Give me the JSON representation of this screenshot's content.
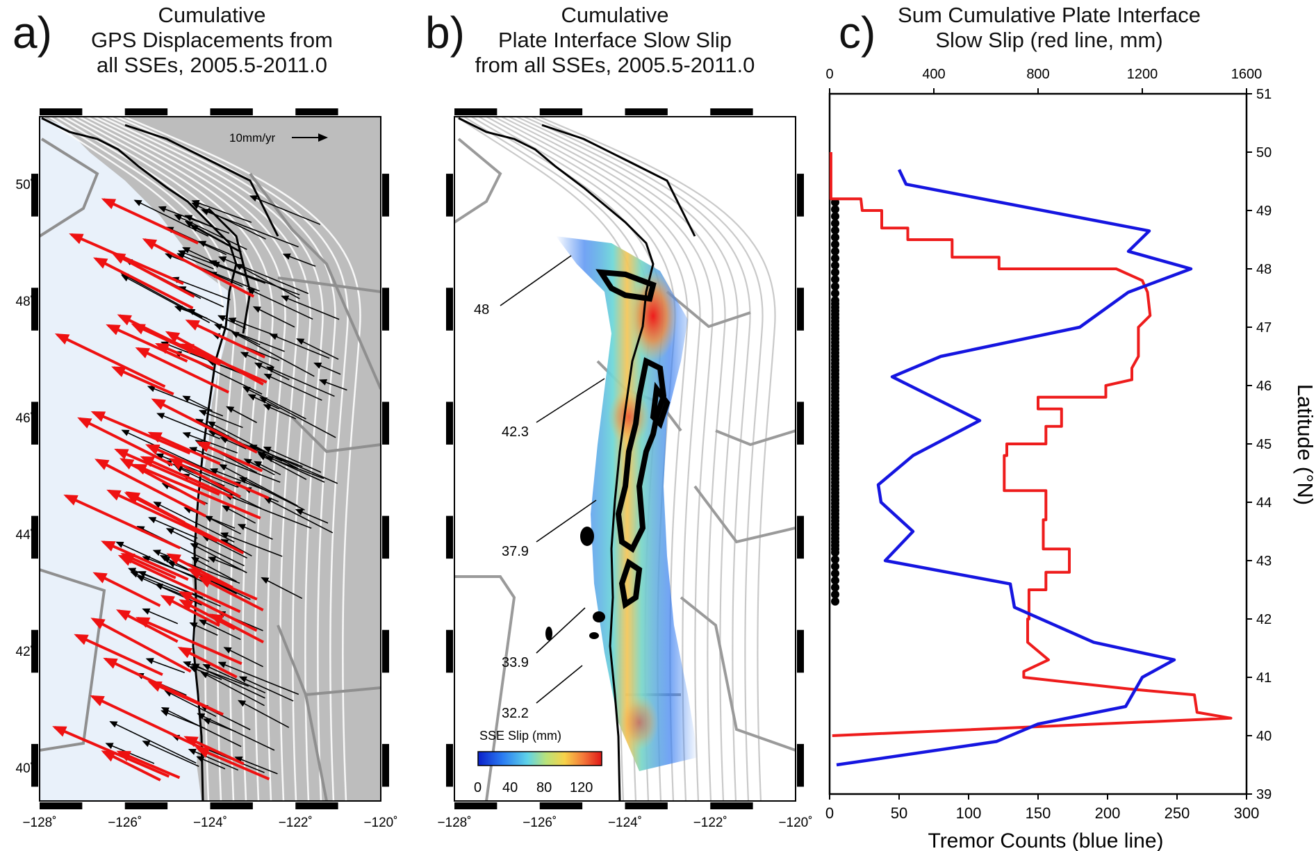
{
  "panels": {
    "a": {
      "label": "a)",
      "title": [
        "Cumulative",
        "GPS Displacements from",
        "all SSEs, 2005.5-2011.0"
      ],
      "arrow_scale_label": "10mm/yr"
    },
    "b": {
      "label": "b)",
      "title": [
        "Cumulative",
        "Plate Interface Slow Slip",
        "from all SSEs, 2005.5-2011.0"
      ],
      "colorbar_label": "SSE Slip (mm)",
      "colorbar_ticks": [
        "0",
        "40",
        "80",
        "120"
      ],
      "depth_labels": [
        "48",
        "42.3",
        "37.9",
        "33.9",
        "32.2"
      ]
    },
    "c": {
      "label": "c)",
      "title": [
        "Sum Cumulative Plate Interface",
        "Slow Slip (red line, mm)"
      ],
      "bottom_axis_label": "Tremor Counts (blue line)",
      "right_axis_label": "Latitude (°N)"
    }
  },
  "map_axes": {
    "lon_ticks": [
      "−128˚",
      "−126˚",
      "−124˚",
      "−122˚",
      "−120˚"
    ],
    "lat_ticks": [
      "40˚",
      "42˚",
      "44˚",
      "46˚",
      "48˚",
      "50˚"
    ]
  },
  "colors": {
    "slip": "#ee1c1c",
    "tremor": "#1515e0",
    "gps_black": "#000000",
    "gps_red": "#ee1111",
    "map_gray": "#bdbdbd",
    "ocean": "#e9f1fa"
  },
  "chart_data": [
    {
      "type": "line",
      "title": "Sum Cumulative Plate Interface Slow Slip (red line, mm)",
      "xlabel_top": "Sum Cumulative Plate Interface Slow Slip (red line, mm)",
      "xlabel_bottom": "Tremor Counts (blue line)",
      "ylabel": "Latitude (°N)",
      "ylim": [
        39,
        51
      ],
      "top_xlim": [
        0,
        1600
      ],
      "top_xticks": [
        "0",
        "400",
        "800",
        "1200",
        "1600"
      ],
      "bottom_xlim": [
        0,
        300
      ],
      "bottom_xticks": [
        "0",
        "50",
        "100",
        "150",
        "200",
        "250",
        "300"
      ],
      "yticks": [
        "39",
        "40",
        "41",
        "42",
        "43",
        "44",
        "45",
        "46",
        "47",
        "48",
        "49",
        "50",
        "51"
      ],
      "series": [
        {
          "name": "red line",
          "axis": "top",
          "color": "#ee1c1c",
          "points": [
            [
              5,
              50.0
            ],
            [
              5,
              49.2
            ],
            [
              120,
              49.2
            ],
            [
              125,
              49.0
            ],
            [
              200,
              49.0
            ],
            [
              200,
              48.7
            ],
            [
              300,
              48.7
            ],
            [
              300,
              48.5
            ],
            [
              470,
              48.5
            ],
            [
              470,
              48.2
            ],
            [
              650,
              48.2
            ],
            [
              650,
              48.0
            ],
            [
              1100,
              48.0
            ],
            [
              1200,
              47.8
            ],
            [
              1220,
              47.6
            ],
            [
              1230,
              47.2
            ],
            [
              1185,
              47.0
            ],
            [
              1185,
              46.5
            ],
            [
              1160,
              46.3
            ],
            [
              1160,
              46.1
            ],
            [
              1060,
              46.0
            ],
            [
              1060,
              45.8
            ],
            [
              800,
              45.8
            ],
            [
              800,
              45.6
            ],
            [
              890,
              45.6
            ],
            [
              890,
              45.3
            ],
            [
              830,
              45.3
            ],
            [
              830,
              45.0
            ],
            [
              680,
              45.0
            ],
            [
              680,
              44.8
            ],
            [
              670,
              44.8
            ],
            [
              670,
              44.2
            ],
            [
              830,
              44.2
            ],
            [
              830,
              43.7
            ],
            [
              820,
              43.7
            ],
            [
              820,
              43.2
            ],
            [
              920,
              43.2
            ],
            [
              920,
              42.8
            ],
            [
              830,
              42.8
            ],
            [
              830,
              42.5
            ],
            [
              765,
              42.5
            ],
            [
              765,
              42.0
            ],
            [
              760,
              42.0
            ],
            [
              760,
              41.6
            ],
            [
              840,
              41.3
            ],
            [
              745,
              41.1
            ],
            [
              745,
              41.0
            ],
            [
              1150,
              40.8
            ],
            [
              1400,
              40.7
            ],
            [
              1410,
              40.4
            ],
            [
              1540,
              40.3
            ],
            [
              10,
              40.0
            ]
          ]
        },
        {
          "name": "blue line",
          "axis": "bottom",
          "color": "#1515e0",
          "points": [
            [
              50,
              49.7
            ],
            [
              55,
              49.45
            ],
            [
              230,
              48.65
            ],
            [
              215,
              48.3
            ],
            [
              260,
              48.0
            ],
            [
              215,
              47.6
            ],
            [
              180,
              47.0
            ],
            [
              80,
              46.5
            ],
            [
              45,
              46.15
            ],
            [
              108,
              45.4
            ],
            [
              60,
              44.8
            ],
            [
              35,
              44.3
            ],
            [
              37,
              44.0
            ],
            [
              60,
              43.5
            ],
            [
              40,
              43.0
            ],
            [
              130,
              42.6
            ],
            [
              133,
              42.2
            ],
            [
              190,
              41.6
            ],
            [
              248,
              41.3
            ],
            [
              225,
              41.0
            ],
            [
              213,
              40.5
            ],
            [
              150,
              40.2
            ],
            [
              120,
              39.9
            ],
            [
              5,
              39.5
            ]
          ]
        }
      ]
    }
  ]
}
